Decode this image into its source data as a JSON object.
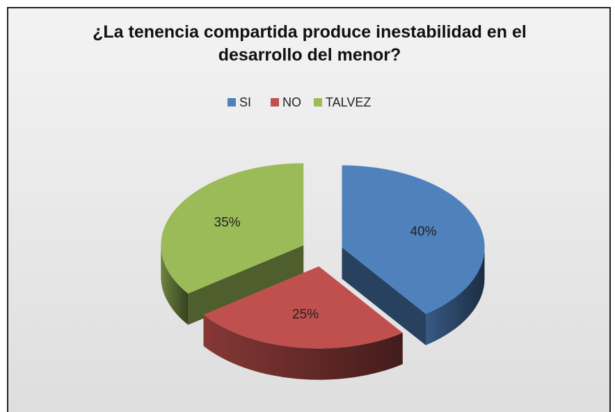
{
  "chart_data": {
    "type": "pie",
    "title": "¿La tenencia compartida produce inestabilidad en el desarrollo del menor?",
    "categories": [
      "SI",
      "NO",
      "TALVEZ"
    ],
    "values": [
      40,
      25,
      35
    ],
    "value_labels": [
      "40%",
      "25%",
      "35%"
    ],
    "colors": [
      "#4f81bd",
      "#c0504d",
      "#9bbb59"
    ],
    "legend": "top"
  }
}
